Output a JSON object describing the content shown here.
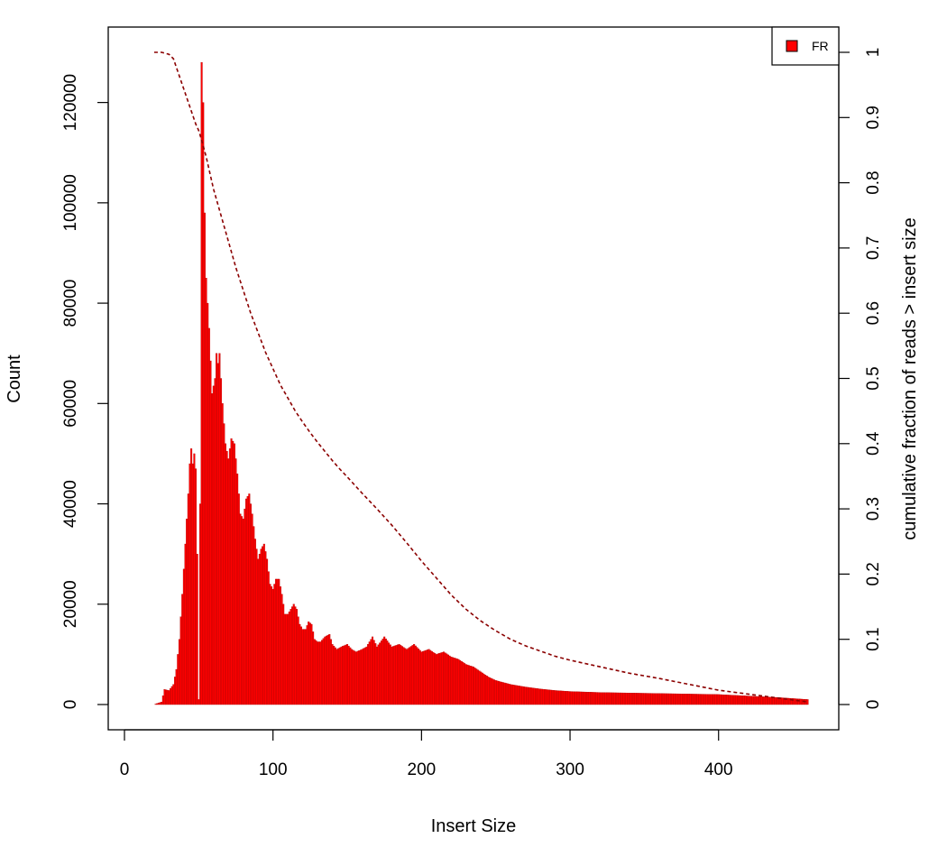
{
  "chart_data": {
    "type": "bar",
    "title": "",
    "xlabel": "Insert Size",
    "ylabel": "Count",
    "y2label": "cumulative fraction of reads > insert size",
    "xlim": [
      0,
      470
    ],
    "ylim": [
      0,
      130000
    ],
    "y2lim": [
      0,
      1
    ],
    "xticks": [
      0,
      100,
      200,
      300,
      400
    ],
    "yticks": [
      0,
      20000,
      40000,
      60000,
      80000,
      100000,
      120000
    ],
    "y2ticks": [
      0,
      0.1,
      0.2,
      0.3,
      0.4,
      0.5,
      0.6,
      0.7,
      0.8,
      0.9,
      1
    ],
    "grid": false,
    "legend_position": "top-right",
    "series": [
      {
        "name": "FR",
        "kind": "histogram",
        "color": "#ff0000",
        "x_start": 20,
        "x_end": 460,
        "points": [
          [
            20,
            0
          ],
          [
            25,
            500
          ],
          [
            27,
            3000
          ],
          [
            30,
            2800
          ],
          [
            33,
            4000
          ],
          [
            35,
            7000
          ],
          [
            37,
            13000
          ],
          [
            39,
            22000
          ],
          [
            41,
            32000
          ],
          [
            43,
            42000
          ],
          [
            44,
            48000
          ],
          [
            45,
            51000
          ],
          [
            46,
            48000
          ],
          [
            47,
            50000
          ],
          [
            48,
            47000
          ],
          [
            49,
            30000
          ],
          [
            50,
            1000
          ],
          [
            51,
            40000
          ],
          [
            52,
            128000
          ],
          [
            53,
            120000
          ],
          [
            54,
            98000
          ],
          [
            55,
            85000
          ],
          [
            57,
            75000
          ],
          [
            59,
            62000
          ],
          [
            61,
            65000
          ],
          [
            62,
            70000
          ],
          [
            63,
            68000
          ],
          [
            64,
            70000
          ],
          [
            66,
            60000
          ],
          [
            68,
            52000
          ],
          [
            70,
            49000
          ],
          [
            72,
            53000
          ],
          [
            74,
            52000
          ],
          [
            76,
            46000
          ],
          [
            78,
            38000
          ],
          [
            80,
            37000
          ],
          [
            82,
            41000
          ],
          [
            84,
            42000
          ],
          [
            86,
            38000
          ],
          [
            88,
            33000
          ],
          [
            90,
            29000
          ],
          [
            92,
            31000
          ],
          [
            94,
            32000
          ],
          [
            96,
            29000
          ],
          [
            98,
            24000
          ],
          [
            100,
            23000
          ],
          [
            102,
            25000
          ],
          [
            104,
            25000
          ],
          [
            106,
            22000
          ],
          [
            108,
            18000
          ],
          [
            110,
            18000
          ],
          [
            112,
            19000
          ],
          [
            114,
            20000
          ],
          [
            116,
            19000
          ],
          [
            118,
            16000
          ],
          [
            120,
            15000
          ],
          [
            122,
            15000
          ],
          [
            124,
            16500
          ],
          [
            126,
            16000
          ],
          [
            128,
            13000
          ],
          [
            130,
            12500
          ],
          [
            132,
            12500
          ],
          [
            135,
            13500
          ],
          [
            138,
            14000
          ],
          [
            140,
            12000
          ],
          [
            143,
            11000
          ],
          [
            146,
            11500
          ],
          [
            150,
            12000
          ],
          [
            153,
            11000
          ],
          [
            156,
            10500
          ],
          [
            160,
            11000
          ],
          [
            163,
            11500
          ],
          [
            167,
            13500
          ],
          [
            170,
            11500
          ],
          [
            175,
            13500
          ],
          [
            180,
            11500
          ],
          [
            185,
            12000
          ],
          [
            190,
            11000
          ],
          [
            195,
            12000
          ],
          [
            200,
            10500
          ],
          [
            205,
            11000
          ],
          [
            210,
            10000
          ],
          [
            215,
            10500
          ],
          [
            220,
            9500
          ],
          [
            225,
            9000
          ],
          [
            230,
            8000
          ],
          [
            235,
            7500
          ],
          [
            240,
            6500
          ],
          [
            245,
            5500
          ],
          [
            250,
            4800
          ],
          [
            260,
            4000
          ],
          [
            270,
            3500
          ],
          [
            280,
            3100
          ],
          [
            290,
            2800
          ],
          [
            300,
            2600
          ],
          [
            320,
            2400
          ],
          [
            340,
            2300
          ],
          [
            360,
            2200
          ],
          [
            380,
            2100
          ],
          [
            400,
            2000
          ],
          [
            420,
            1700
          ],
          [
            440,
            1400
          ],
          [
            460,
            1000
          ]
        ]
      },
      {
        "name": "",
        "kind": "cumulative",
        "axis": "right",
        "color": "#8b0000",
        "points": [
          [
            20,
            1.0
          ],
          [
            25,
            1.0
          ],
          [
            30,
            0.997
          ],
          [
            33,
            0.99
          ],
          [
            36,
            0.97
          ],
          [
            39,
            0.95
          ],
          [
            42,
            0.93
          ],
          [
            45,
            0.91
          ],
          [
            48,
            0.89
          ],
          [
            50,
            0.88
          ],
          [
            52,
            0.865
          ],
          [
            55,
            0.84
          ],
          [
            60,
            0.79
          ],
          [
            65,
            0.75
          ],
          [
            70,
            0.71
          ],
          [
            75,
            0.67
          ],
          [
            80,
            0.635
          ],
          [
            85,
            0.6
          ],
          [
            90,
            0.57
          ],
          [
            95,
            0.54
          ],
          [
            100,
            0.515
          ],
          [
            105,
            0.49
          ],
          [
            110,
            0.47
          ],
          [
            115,
            0.45
          ],
          [
            120,
            0.433
          ],
          [
            125,
            0.417
          ],
          [
            130,
            0.402
          ],
          [
            135,
            0.388
          ],
          [
            140,
            0.374
          ],
          [
            145,
            0.361
          ],
          [
            150,
            0.349
          ],
          [
            160,
            0.324
          ],
          [
            170,
            0.3
          ],
          [
            180,
            0.275
          ],
          [
            190,
            0.248
          ],
          [
            200,
            0.22
          ],
          [
            210,
            0.194
          ],
          [
            220,
            0.168
          ],
          [
            230,
            0.146
          ],
          [
            240,
            0.128
          ],
          [
            250,
            0.113
          ],
          [
            260,
            0.1
          ],
          [
            270,
            0.09
          ],
          [
            280,
            0.082
          ],
          [
            290,
            0.074
          ],
          [
            300,
            0.068
          ],
          [
            320,
            0.058
          ],
          [
            340,
            0.048
          ],
          [
            360,
            0.04
          ],
          [
            380,
            0.031
          ],
          [
            400,
            0.022
          ],
          [
            420,
            0.016
          ],
          [
            440,
            0.01
          ],
          [
            460,
            0.004
          ]
        ]
      }
    ]
  }
}
